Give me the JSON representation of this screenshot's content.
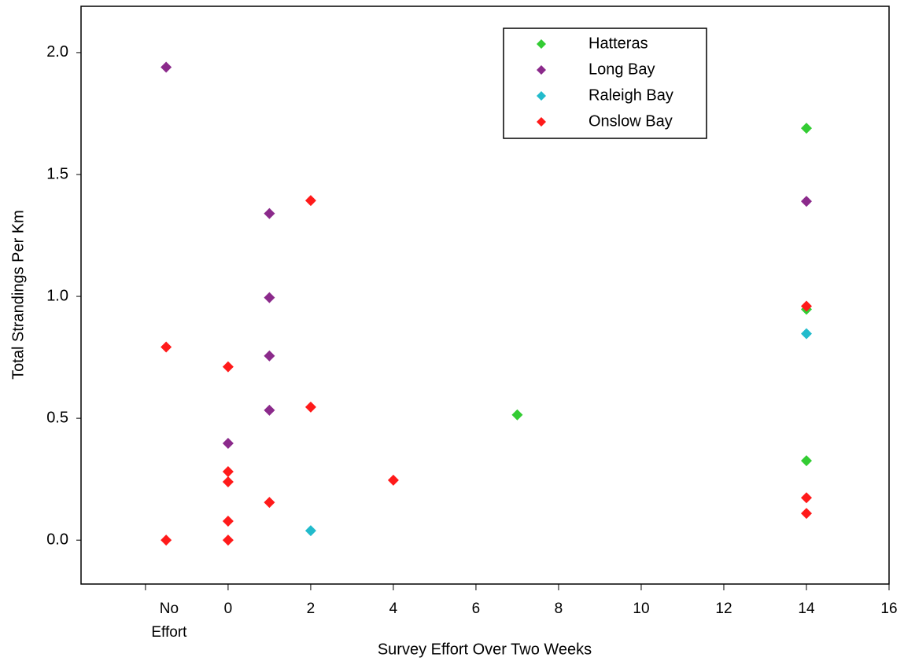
{
  "chart_data": {
    "type": "scatter",
    "x_label": "Survey Effort Over Two Weeks",
    "y_label": "Total Strandings Per Km",
    "xlim": [
      -3.56,
      16
    ],
    "ylim": [
      -0.18,
      2.19
    ],
    "xticks": [
      {
        "value": -2,
        "label": "No Effort"
      },
      0,
      2,
      4,
      6,
      8,
      10,
      12,
      14,
      16
    ],
    "yticks": [
      {
        "value": 0,
        "label": "0.0"
      },
      0.5,
      {
        "value": 1,
        "label": "1.0"
      },
      1.5,
      {
        "value": 2,
        "label": "2.0"
      }
    ],
    "grid": false,
    "legend": "upper right",
    "series": [
      {
        "name": "Hatteras",
        "color": "#33cc33",
        "x": [
          7,
          14,
          14,
          14
        ],
        "y": [
          0.514,
          1.69,
          0.947,
          0.326
        ]
      },
      {
        "name": "Long Bay",
        "color": "#8b2a8b",
        "x": [
          -1.5,
          1,
          1,
          1,
          1,
          0,
          14
        ],
        "y": [
          1.94,
          1.34,
          0.995,
          0.756,
          0.533,
          0.397,
          1.39
        ]
      },
      {
        "name": "Raleigh Bay",
        "color": "#22bbcc",
        "x": [
          2,
          14
        ],
        "y": [
          0.039,
          0.847
        ]
      },
      {
        "name": "Onslow Bay",
        "color": "#ff1a1a",
        "x": [
          -1.5,
          -1.5,
          0,
          0,
          0,
          0,
          0,
          1,
          2,
          2,
          4,
          14,
          14,
          14
        ],
        "y": [
          0.792,
          0,
          0.711,
          0.281,
          0.239,
          0.078,
          0,
          0.155,
          1.393,
          0.546,
          0.246,
          0.96,
          0.174,
          0.11
        ]
      }
    ]
  }
}
